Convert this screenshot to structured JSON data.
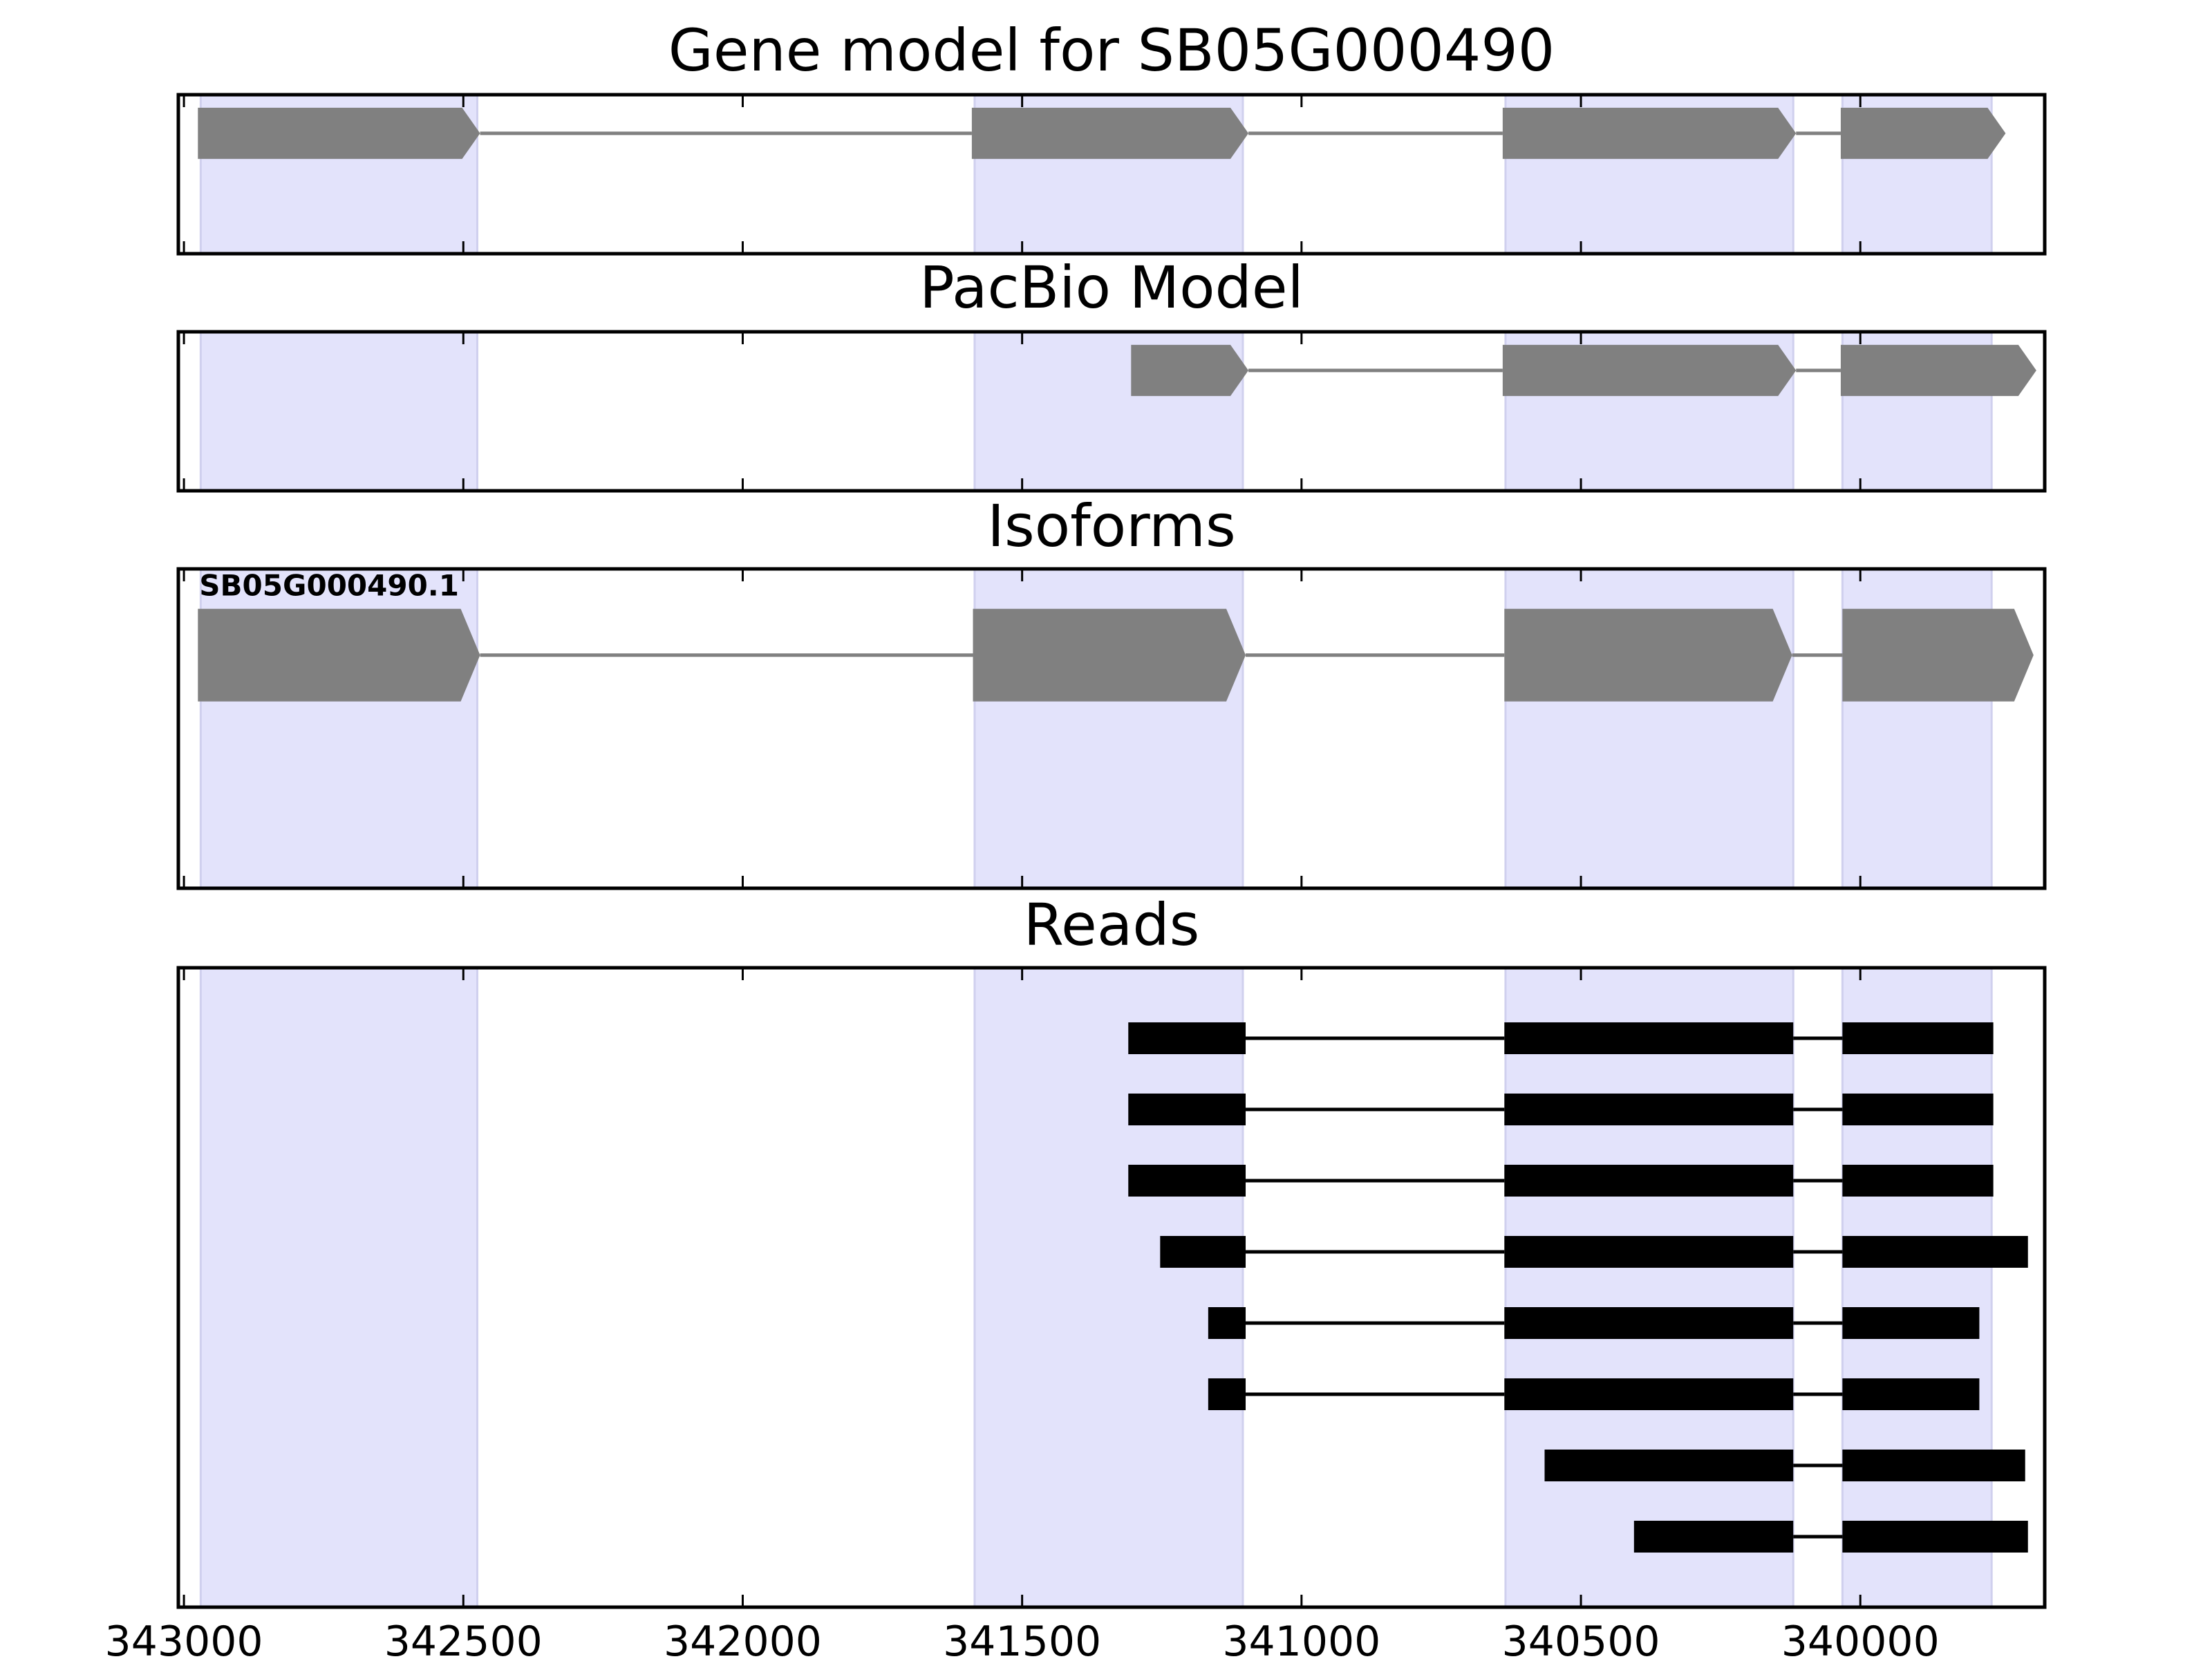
{
  "chart_data": {
    "type": "gene_structure",
    "x_axis": {
      "range": [
        343010,
        339670
      ],
      "reversed": true,
      "ticks": [
        343000,
        342500,
        342000,
        341500,
        341000,
        340500,
        340000
      ],
      "tick_labels": [
        "343000",
        "342500",
        "342000",
        "341500",
        "341000",
        "340500",
        "340000"
      ]
    },
    "highlight_color": "#e3e3fb",
    "exon_color": "#808080",
    "read_color": "#000000",
    "shared_exon_regions": [
      [
        342970,
        342475
      ],
      [
        341585,
        341105
      ],
      [
        340635,
        340120
      ],
      [
        340032,
        339765
      ]
    ],
    "panels": [
      {
        "title": "Gene model for SB05G000490",
        "kind": "model",
        "strand": "-",
        "exons": [
          [
            342975,
            342470
          ],
          [
            341590,
            341095
          ],
          [
            340640,
            340115
          ],
          [
            340035,
            339740
          ]
        ]
      },
      {
        "title": "PacBio Model",
        "kind": "model",
        "strand": "-",
        "exons": [
          [
            341305,
            341095
          ],
          [
            340640,
            340115
          ],
          [
            340035,
            339685
          ]
        ]
      },
      {
        "title": "Isoforms",
        "kind": "isoforms",
        "isoforms": [
          {
            "name": "SB05G000490.1",
            "strand": "-",
            "exons": [
              [
                342975,
                342470
              ],
              [
                341588,
                341100
              ],
              [
                340637,
                340122
              ],
              [
                340032,
                339690
              ]
            ]
          }
        ]
      },
      {
        "title": "Reads",
        "kind": "reads",
        "reads": [
          [
            [
              341310,
              341100
            ],
            [
              340637,
              340120
            ],
            [
              340032,
              339762
            ]
          ],
          [
            [
              341310,
              341100
            ],
            [
              340637,
              340120
            ],
            [
              340032,
              339762
            ]
          ],
          [
            [
              341310,
              341100
            ],
            [
              340637,
              340120
            ],
            [
              340032,
              339762
            ]
          ],
          [
            [
              341253,
              341100
            ],
            [
              340637,
              340120
            ],
            [
              340032,
              339700
            ]
          ],
          [
            [
              341167,
              341100
            ],
            [
              340637,
              340120
            ],
            [
              340032,
              339787
            ]
          ],
          [
            [
              341167,
              341100
            ],
            [
              340637,
              340120
            ],
            [
              340032,
              339787
            ]
          ],
          [
            [
              340565,
              340120
            ],
            [
              340032,
              339705
            ]
          ],
          [
            [
              340405,
              340120
            ],
            [
              340032,
              339700
            ]
          ]
        ]
      }
    ]
  }
}
